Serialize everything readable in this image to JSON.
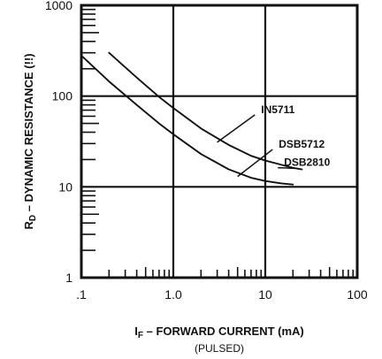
{
  "chart_data": {
    "type": "line",
    "x_scale": "log",
    "y_scale": "log",
    "xlim": [
      0.1,
      100
    ],
    "ylim": [
      1,
      1000
    ],
    "x_ticks": [
      ".1",
      "1.0",
      "10",
      "100"
    ],
    "x_tick_values": [
      0.1,
      1,
      10,
      100
    ],
    "y_ticks": [
      "1000",
      "100",
      "10",
      "1"
    ],
    "y_tick_values": [
      1000,
      100,
      10,
      1
    ],
    "xlabel": {
      "main": "I",
      "sub": "F",
      "rest": " – FORWARD CURRENT (mA)",
      "line2": "(PULSED)"
    },
    "ylabel": {
      "main": "R",
      "sub": "D",
      "rest": " – DYNAMIC RESISTANCE (!!)"
    },
    "grid": "major decades",
    "series": [
      {
        "x": [
          0.2,
          0.4,
          0.7,
          1.0,
          2.0,
          4.0,
          7.0,
          10.0,
          15.0,
          20.0,
          25.0
        ],
        "y": [
          300,
          160,
          98,
          74,
          44,
          29,
          22,
          19.5,
          17.5,
          16.2,
          15.6
        ]
      },
      {
        "x": [
          0.1,
          0.2,
          0.4,
          0.7,
          1.0,
          2.0,
          4.0,
          7.0,
          10.0,
          15.0,
          20.0
        ],
        "y": [
          280,
          145,
          80,
          50,
          38,
          23,
          15.6,
          12.6,
          11.6,
          10.9,
          10.6
        ]
      }
    ],
    "annotations": [
      {
        "text": "IN5711",
        "x": 9,
        "y": 65,
        "points_to": [
          3,
          31
        ]
      },
      {
        "text": "DSB5712",
        "x": 14,
        "y": 27,
        "points_to": [
          5,
          13
        ]
      },
      {
        "text": "DSB2810",
        "x": 16,
        "y": 17,
        "points_to": [
          21,
          16
        ]
      }
    ]
  }
}
